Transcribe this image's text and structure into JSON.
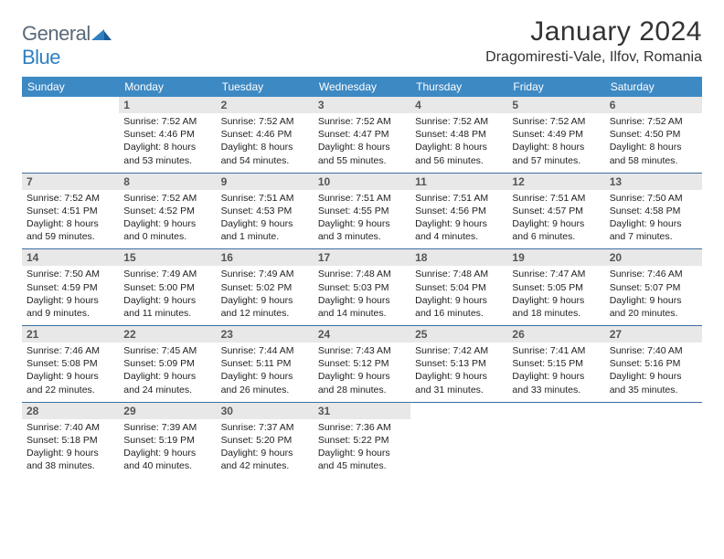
{
  "brand": {
    "name1": "General",
    "name2": "Blue"
  },
  "title": "January 2024",
  "location": "Dragomiresti-Vale, Ilfov, Romania",
  "colors": {
    "header_bg": "#3d89c3",
    "header_text": "#ffffff",
    "daynum_bg": "#e8e8e8",
    "daynum_text": "#555555",
    "rule": "#3d6fa2",
    "brand_gray": "#5a6a78",
    "brand_blue": "#2f7fc1",
    "body_text": "#222222"
  },
  "typography": {
    "title_fontsize": 30,
    "location_fontsize": 16,
    "dow_fontsize": 12,
    "daynum_fontsize": 12,
    "body_fontsize": 10.5
  },
  "days_of_week": [
    "Sunday",
    "Monday",
    "Tuesday",
    "Wednesday",
    "Thursday",
    "Friday",
    "Saturday"
  ],
  "weeks": [
    [
      null,
      {
        "n": "1",
        "sr": "7:52 AM",
        "ss": "4:46 PM",
        "dl": "8 hours and 53 minutes."
      },
      {
        "n": "2",
        "sr": "7:52 AM",
        "ss": "4:46 PM",
        "dl": "8 hours and 54 minutes."
      },
      {
        "n": "3",
        "sr": "7:52 AM",
        "ss": "4:47 PM",
        "dl": "8 hours and 55 minutes."
      },
      {
        "n": "4",
        "sr": "7:52 AM",
        "ss": "4:48 PM",
        "dl": "8 hours and 56 minutes."
      },
      {
        "n": "5",
        "sr": "7:52 AM",
        "ss": "4:49 PM",
        "dl": "8 hours and 57 minutes."
      },
      {
        "n": "6",
        "sr": "7:52 AM",
        "ss": "4:50 PM",
        "dl": "8 hours and 58 minutes."
      }
    ],
    [
      {
        "n": "7",
        "sr": "7:52 AM",
        "ss": "4:51 PM",
        "dl": "8 hours and 59 minutes."
      },
      {
        "n": "8",
        "sr": "7:52 AM",
        "ss": "4:52 PM",
        "dl": "9 hours and 0 minutes."
      },
      {
        "n": "9",
        "sr": "7:51 AM",
        "ss": "4:53 PM",
        "dl": "9 hours and 1 minute."
      },
      {
        "n": "10",
        "sr": "7:51 AM",
        "ss": "4:55 PM",
        "dl": "9 hours and 3 minutes."
      },
      {
        "n": "11",
        "sr": "7:51 AM",
        "ss": "4:56 PM",
        "dl": "9 hours and 4 minutes."
      },
      {
        "n": "12",
        "sr": "7:51 AM",
        "ss": "4:57 PM",
        "dl": "9 hours and 6 minutes."
      },
      {
        "n": "13",
        "sr": "7:50 AM",
        "ss": "4:58 PM",
        "dl": "9 hours and 7 minutes."
      }
    ],
    [
      {
        "n": "14",
        "sr": "7:50 AM",
        "ss": "4:59 PM",
        "dl": "9 hours and 9 minutes."
      },
      {
        "n": "15",
        "sr": "7:49 AM",
        "ss": "5:00 PM",
        "dl": "9 hours and 11 minutes."
      },
      {
        "n": "16",
        "sr": "7:49 AM",
        "ss": "5:02 PM",
        "dl": "9 hours and 12 minutes."
      },
      {
        "n": "17",
        "sr": "7:48 AM",
        "ss": "5:03 PM",
        "dl": "9 hours and 14 minutes."
      },
      {
        "n": "18",
        "sr": "7:48 AM",
        "ss": "5:04 PM",
        "dl": "9 hours and 16 minutes."
      },
      {
        "n": "19",
        "sr": "7:47 AM",
        "ss": "5:05 PM",
        "dl": "9 hours and 18 minutes."
      },
      {
        "n": "20",
        "sr": "7:46 AM",
        "ss": "5:07 PM",
        "dl": "9 hours and 20 minutes."
      }
    ],
    [
      {
        "n": "21",
        "sr": "7:46 AM",
        "ss": "5:08 PM",
        "dl": "9 hours and 22 minutes."
      },
      {
        "n": "22",
        "sr": "7:45 AM",
        "ss": "5:09 PM",
        "dl": "9 hours and 24 minutes."
      },
      {
        "n": "23",
        "sr": "7:44 AM",
        "ss": "5:11 PM",
        "dl": "9 hours and 26 minutes."
      },
      {
        "n": "24",
        "sr": "7:43 AM",
        "ss": "5:12 PM",
        "dl": "9 hours and 28 minutes."
      },
      {
        "n": "25",
        "sr": "7:42 AM",
        "ss": "5:13 PM",
        "dl": "9 hours and 31 minutes."
      },
      {
        "n": "26",
        "sr": "7:41 AM",
        "ss": "5:15 PM",
        "dl": "9 hours and 33 minutes."
      },
      {
        "n": "27",
        "sr": "7:40 AM",
        "ss": "5:16 PM",
        "dl": "9 hours and 35 minutes."
      }
    ],
    [
      {
        "n": "28",
        "sr": "7:40 AM",
        "ss": "5:18 PM",
        "dl": "9 hours and 38 minutes."
      },
      {
        "n": "29",
        "sr": "7:39 AM",
        "ss": "5:19 PM",
        "dl": "9 hours and 40 minutes."
      },
      {
        "n": "30",
        "sr": "7:37 AM",
        "ss": "5:20 PM",
        "dl": "9 hours and 42 minutes."
      },
      {
        "n": "31",
        "sr": "7:36 AM",
        "ss": "5:22 PM",
        "dl": "9 hours and 45 minutes."
      },
      null,
      null,
      null
    ]
  ],
  "labels": {
    "sunrise": "Sunrise:",
    "sunset": "Sunset:",
    "daylight": "Daylight:"
  }
}
